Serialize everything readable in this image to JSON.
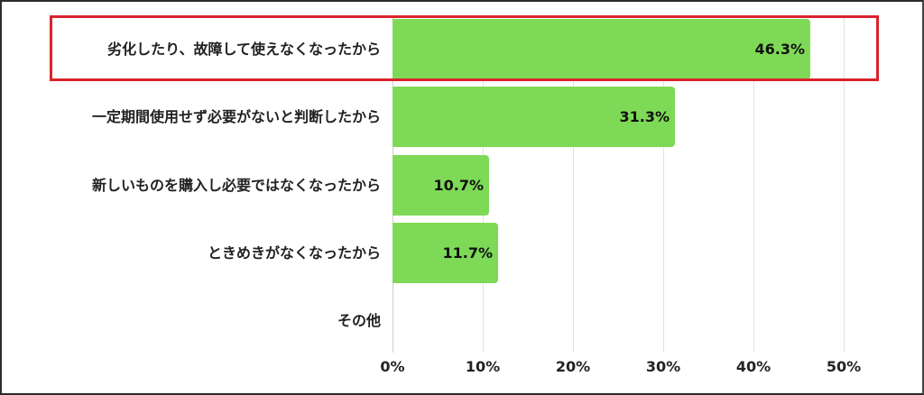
{
  "chart_data": {
    "type": "bar",
    "orientation": "horizontal",
    "title": "",
    "xlabel": "",
    "ylabel": "",
    "categories": [
      "劣化したり、故障して使えなくなったから",
      "一定期間使用せず必要がないと判断したから",
      "新しいものを購入し必要ではなくなったから",
      "ときめきがなくなったから",
      "その他"
    ],
    "values": [
      46.3,
      31.3,
      10.7,
      11.7,
      null
    ],
    "value_labels": [
      "46.3%",
      "31.3%",
      "10.7%",
      "11.7%",
      ""
    ],
    "xlim": [
      0,
      50
    ],
    "x_ticks": [
      "0%",
      "10%",
      "20%",
      "30%",
      "40%",
      "50%"
    ],
    "grid": "vertical",
    "legend": "none",
    "highlighted_category_index": 0
  },
  "colors": {
    "bar": "#7ed957",
    "highlight_border": "#d9232e",
    "text": "#222222",
    "grid": "#e2e2e2"
  }
}
